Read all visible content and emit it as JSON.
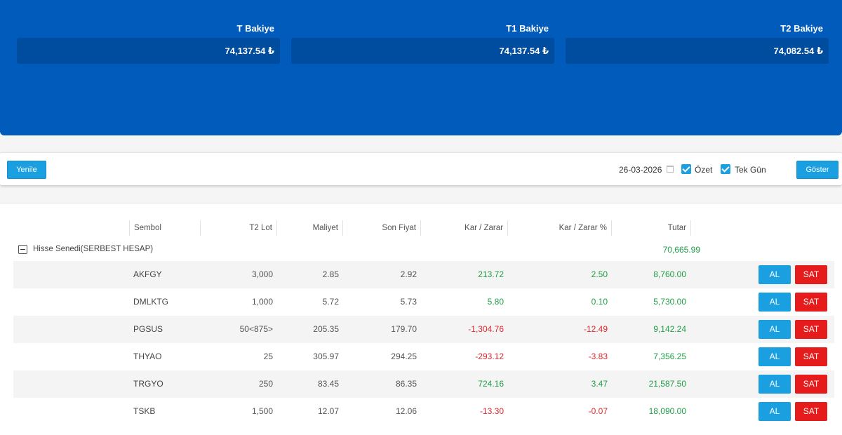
{
  "balances": [
    {
      "label": "T Bakiye",
      "value": "74,137.54 ₺"
    },
    {
      "label": "T1 Bakiye",
      "value": "74,137.54 ₺"
    },
    {
      "label": "T2 Bakiye",
      "value": "74,082.54 ₺"
    }
  ],
  "toolbar": {
    "refresh_label": "Yenile",
    "date": "26-03-2026",
    "summary_label": "Özet",
    "single_day_label": "Tek Gün",
    "show_label": "Göster",
    "summary_checked": true,
    "single_day_checked": true
  },
  "table": {
    "headers": {
      "symbol": "Sembol",
      "t2_lot": "T2 Lot",
      "cost": "Maliyet",
      "last_price": "Son Fiyat",
      "pnl": "Kar / Zarar",
      "pnl_pct": "Kar / Zarar %",
      "amount": "Tutar"
    },
    "group": {
      "label": "Hisse Senedi(SERBEST HESAP)",
      "total": "70,665.99"
    },
    "buy_label": "AL",
    "sell_label": "SAT",
    "rows": [
      {
        "symbol": "AKFGY",
        "lot": "3,000",
        "cost": "2.85",
        "last": "2.92",
        "pnl": "213.72",
        "pnl_pct": "2.50",
        "amount": "8,760.00"
      },
      {
        "symbol": "DMLKTG",
        "lot": "1,000",
        "cost": "5.72",
        "last": "5.73",
        "pnl": "5.80",
        "pnl_pct": "0.10",
        "amount": "5,730.00"
      },
      {
        "symbol": "PGSUS",
        "lot": "50<875>",
        "cost": "205.35",
        "last": "179.70",
        "pnl": "-1,304.76",
        "pnl_pct": "-12.49",
        "amount": "9,142.24"
      },
      {
        "symbol": "THYAO",
        "lot": "25",
        "cost": "305.97",
        "last": "294.25",
        "pnl": "-293.12",
        "pnl_pct": "-3.83",
        "amount": "7,356.25"
      },
      {
        "symbol": "TRGYO",
        "lot": "250",
        "cost": "83.45",
        "last": "86.35",
        "pnl": "724.16",
        "pnl_pct": "3.47",
        "amount": "21,587.50"
      },
      {
        "symbol": "TSKB",
        "lot": "1,500",
        "cost": "12.07",
        "last": "12.06",
        "pnl": "-13.30",
        "pnl_pct": "-0.07",
        "amount": "18,090.00"
      }
    ]
  },
  "colors": {
    "header_bg": "#005bbb",
    "positive": "#1e9e45",
    "negative": "#e0262b",
    "buy": "#1a9fe0",
    "sell": "#e61b1b"
  }
}
